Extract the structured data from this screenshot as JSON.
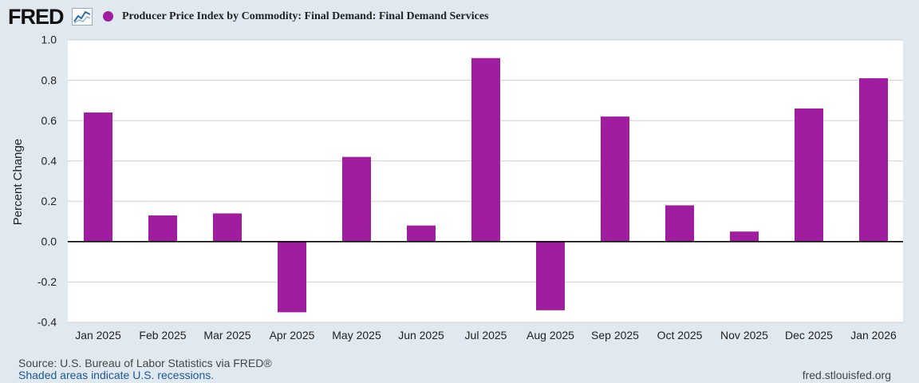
{
  "header": {
    "logo_text": "FRED",
    "logo_icon": "line-graph-icon",
    "series_title": "Producer Price Index by Commodity: Final Demand: Final Demand Services",
    "series_color": "#a01d9f"
  },
  "chart_data": {
    "type": "bar",
    "title": "Producer Price Index by Commodity: Final Demand: Final Demand Services",
    "xlabel": "",
    "ylabel": "Percent Change",
    "ylim": [
      -0.4,
      1.0
    ],
    "yticks": [
      "1.0",
      "0.8",
      "0.6",
      "0.4",
      "0.2",
      "0.0",
      "-0.2",
      "-0.4"
    ],
    "ytick_values": [
      1.0,
      0.8,
      0.6,
      0.4,
      0.2,
      0.0,
      -0.2,
      -0.4
    ],
    "grid": true,
    "categories": [
      "Jan 2025",
      "Feb 2025",
      "Mar 2025",
      "Apr 2025",
      "May 2025",
      "Jun 2025",
      "Jul 2025",
      "Aug 2025",
      "Sep 2025",
      "Oct 2025",
      "Nov 2025",
      "Dec 2025",
      "Jan 2026"
    ],
    "values": [
      0.64,
      0.13,
      0.14,
      -0.35,
      0.42,
      0.08,
      0.91,
      -0.34,
      0.62,
      0.18,
      0.05,
      0.66,
      0.81
    ],
    "series": [
      {
        "name": "Producer Price Index by Commodity: Final Demand: Final Demand Services",
        "color": "#a01d9f"
      }
    ]
  },
  "footer": {
    "source": "Source: U.S. Bureau of Labor Statistics via FRED®",
    "recession_note": "Shaded areas indicate U.S. recessions.",
    "url": "fred.stlouisfed.org"
  }
}
